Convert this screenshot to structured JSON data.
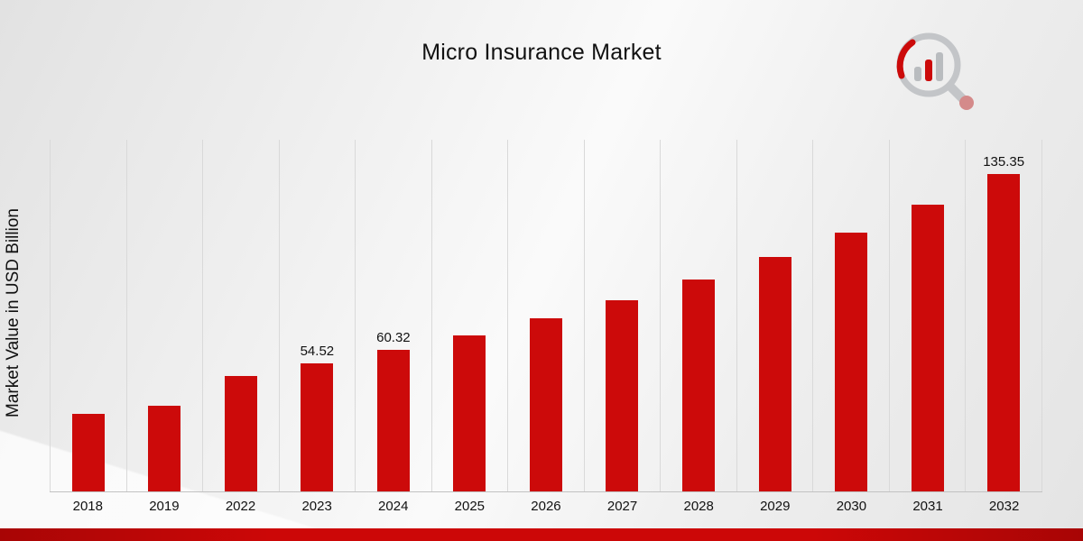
{
  "title": "Micro Insurance Market",
  "y_axis_label": "Market Value in USD Billion",
  "chart_data": {
    "type": "bar",
    "title": "Micro Insurance Market",
    "xlabel": "",
    "ylabel": "Market Value in USD Billion",
    "categories": [
      "2018",
      "2019",
      "2022",
      "2023",
      "2024",
      "2025",
      "2026",
      "2027",
      "2028",
      "2029",
      "2030",
      "2031",
      "2032"
    ],
    "values": [
      32.9,
      36.4,
      49.28,
      54.52,
      60.32,
      66.73,
      73.82,
      81.67,
      90.35,
      99.95,
      110.58,
      122.34,
      135.35
    ],
    "data_labels": {
      "2023": "54.52",
      "2024": "60.32",
      "2032": "135.35"
    },
    "bar_color": "#cc0a0a",
    "ylim": [
      0,
      150
    ],
    "grid": "vertical",
    "legend": "none"
  },
  "branding": {
    "logo_icon": "magnifier-bar-chart-logo"
  },
  "colors": {
    "accent_red": "#cc0707",
    "gridline": "#d9d9d9",
    "text": "#111111"
  }
}
